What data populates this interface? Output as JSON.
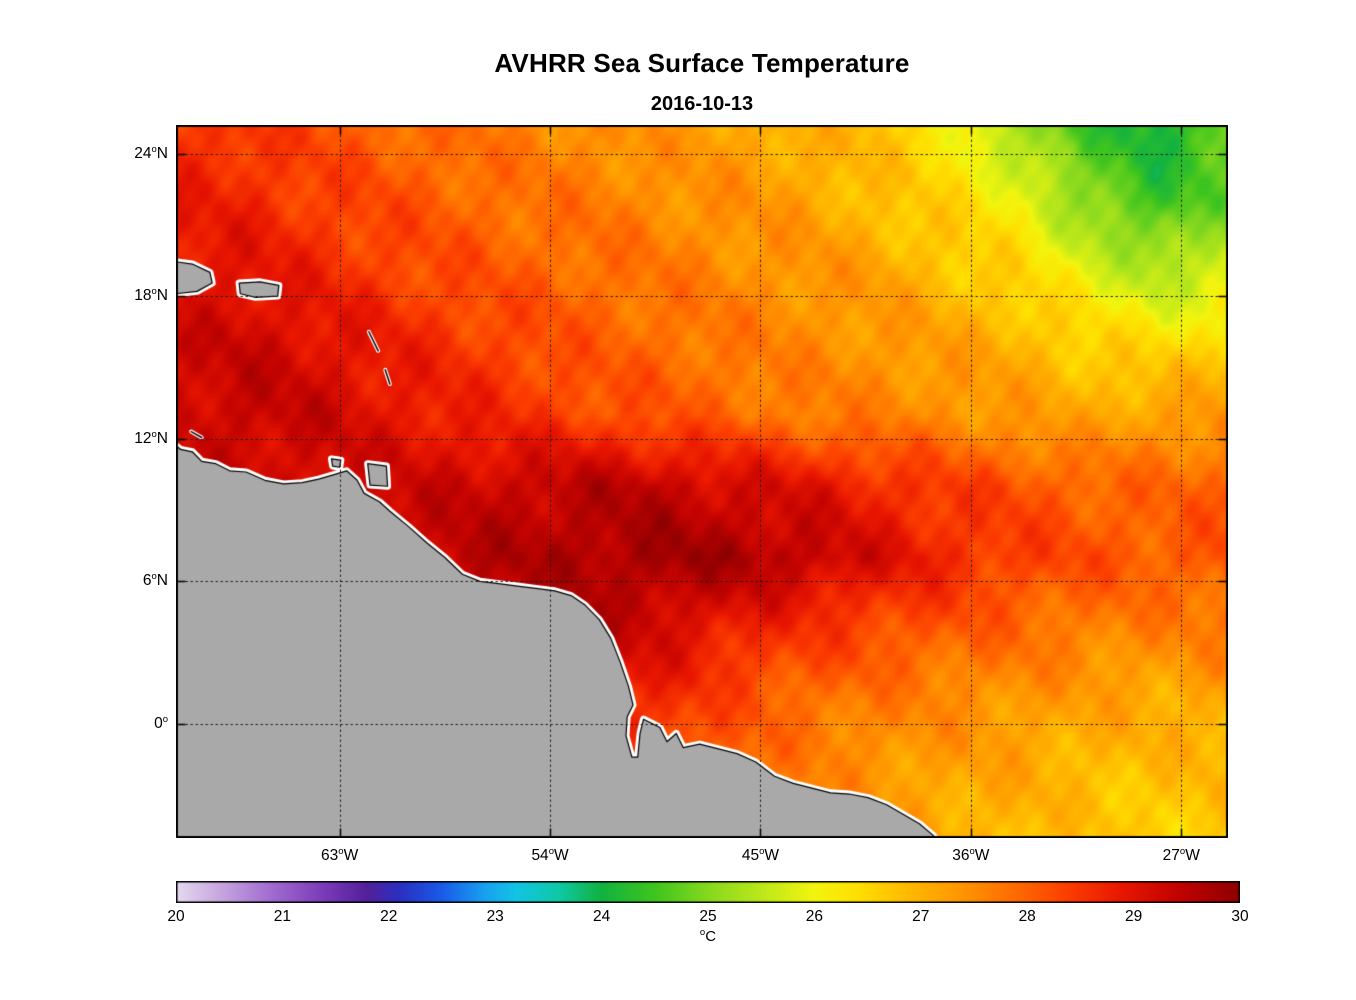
{
  "chart_data": {
    "type": "heatmap",
    "title": "AVHRR Sea Surface Temperature",
    "subtitle": "2016-10-13",
    "xlabel": "",
    "ylabel": "",
    "grid": "dotted",
    "legend_position": "colorbar-bottom",
    "x_axis": {
      "range": [
        -70,
        -25
      ],
      "ticks": [
        {
          "value": -63,
          "num": "63",
          "deg": "o",
          "dir": "W"
        },
        {
          "value": -54,
          "num": "54",
          "deg": "o",
          "dir": "W"
        },
        {
          "value": -45,
          "num": "45",
          "deg": "o",
          "dir": "W"
        },
        {
          "value": -36,
          "num": "36",
          "deg": "o",
          "dir": "W"
        },
        {
          "value": -27,
          "num": "27",
          "deg": "o",
          "dir": "W"
        }
      ]
    },
    "y_axis": {
      "range": [
        -4.8,
        25.2
      ],
      "ticks": [
        {
          "value": 24,
          "num": "24",
          "deg": "o",
          "dir": "N"
        },
        {
          "value": 18,
          "num": "18",
          "deg": "o",
          "dir": "N"
        },
        {
          "value": 12,
          "num": "12",
          "deg": "o",
          "dir": "N"
        },
        {
          "value": 6,
          "num": "6",
          "deg": "o",
          "dir": "N"
        },
        {
          "value": 0,
          "num": "0",
          "deg": "o",
          "dir": ""
        }
      ]
    },
    "field": {
      "units": "degC",
      "lons": [
        -70,
        -67,
        -64,
        -61,
        -58,
        -55,
        -52,
        -49,
        -46,
        -43,
        -40,
        -37,
        -34,
        -31,
        -28,
        -25
      ],
      "lats": [
        -5,
        -2,
        1,
        4,
        7,
        10,
        13,
        16,
        19,
        22,
        25
      ],
      "sst_c": [
        [
          28.4,
          28.5,
          28.5,
          28.5,
          28.5,
          28.5,
          28.4,
          28.1,
          27.7,
          27.4,
          27.2,
          27.0,
          26.9,
          26.7,
          26.6,
          26.7
        ],
        [
          28.5,
          28.6,
          28.6,
          28.7,
          28.7,
          28.7,
          28.6,
          28.3,
          27.9,
          27.6,
          27.4,
          27.2,
          27.1,
          26.9,
          26.8,
          26.9
        ],
        [
          28.6,
          28.7,
          28.8,
          28.9,
          29.0,
          29.0,
          28.9,
          28.6,
          28.2,
          27.9,
          27.7,
          27.5,
          27.4,
          27.2,
          27.1,
          27.2
        ],
        [
          28.8,
          28.9,
          29.0,
          29.1,
          29.2,
          29.3,
          29.4,
          29.2,
          28.8,
          28.5,
          28.3,
          28.1,
          27.9,
          27.7,
          27.6,
          27.7
        ],
        [
          29.0,
          29.1,
          29.2,
          29.3,
          29.5,
          29.6,
          29.7,
          29.8,
          29.7,
          29.5,
          29.1,
          28.7,
          28.4,
          28.2,
          28.1,
          28.2
        ],
        [
          29.1,
          29.2,
          29.2,
          29.2,
          29.3,
          29.4,
          29.5,
          29.4,
          29.2,
          29.0,
          28.7,
          28.4,
          28.2,
          28.0,
          27.9,
          28.0
        ],
        [
          29.3,
          29.4,
          29.3,
          29.0,
          28.8,
          28.5,
          28.3,
          28.1,
          27.9,
          27.7,
          27.6,
          27.5,
          27.3,
          27.1,
          27.3,
          27.4
        ],
        [
          29.2,
          29.3,
          29.1,
          28.8,
          28.5,
          28.3,
          28.0,
          27.9,
          27.7,
          27.5,
          27.4,
          27.2,
          27.0,
          26.6,
          26.4,
          26.5
        ],
        [
          29.0,
          29.0,
          28.7,
          28.4,
          28.2,
          28.0,
          27.9,
          27.7,
          27.5,
          27.4,
          27.2,
          26.8,
          26.5,
          25.9,
          25.4,
          25.7
        ],
        [
          28.8,
          28.7,
          28.4,
          28.2,
          28.0,
          27.8,
          27.7,
          27.5,
          27.4,
          27.2,
          26.8,
          26.5,
          26.1,
          25.0,
          24.4,
          24.9
        ],
        [
          28.6,
          28.5,
          28.2,
          28.0,
          27.8,
          27.6,
          27.5,
          27.3,
          27.2,
          27.0,
          26.8,
          26.3,
          25.2,
          24.5,
          24.1,
          24.6
        ]
      ]
    },
    "colorbar": {
      "min": 20,
      "max": 30,
      "tick_labels": [
        "20",
        "21",
        "22",
        "23",
        "24",
        "25",
        "26",
        "27",
        "28",
        "29",
        "30"
      ],
      "unit_deg": "o",
      "unit_text": "C",
      "stops": [
        [
          20.0,
          "#E4DAF0"
        ],
        [
          20.4,
          "#C9A8E0"
        ],
        [
          20.9,
          "#A06CD0"
        ],
        [
          21.4,
          "#7A3AB8"
        ],
        [
          21.8,
          "#52209A"
        ],
        [
          22.1,
          "#2B2FC0"
        ],
        [
          22.5,
          "#1A5BE8"
        ],
        [
          22.9,
          "#19A0F0"
        ],
        [
          23.2,
          "#13C4E4"
        ],
        [
          23.6,
          "#0FC9A5"
        ],
        [
          24.0,
          "#12B240"
        ],
        [
          24.5,
          "#3FC51E"
        ],
        [
          25.0,
          "#86D81E"
        ],
        [
          25.5,
          "#BCE81A"
        ],
        [
          26.0,
          "#F2F50E"
        ],
        [
          26.4,
          "#FFE000"
        ],
        [
          26.9,
          "#FFB800"
        ],
        [
          27.4,
          "#FF9400"
        ],
        [
          27.9,
          "#FF6A00"
        ],
        [
          28.4,
          "#FB3C00"
        ],
        [
          28.9,
          "#E81600"
        ],
        [
          29.4,
          "#C30300"
        ],
        [
          30.0,
          "#8E0000"
        ]
      ]
    }
  },
  "map": {
    "land_color": "#A9A9A9",
    "coast_halo": "#FFFFFF",
    "coast_line": "#000000",
    "grid_color": "#1A1A1A",
    "frame_color": "#000000"
  },
  "geometry": {
    "mainland": [
      [
        -70.3,
        -5.3
      ],
      [
        -70.3,
        11.7
      ],
      [
        -70.05,
        11.75
      ],
      [
        -69.8,
        11.55
      ],
      [
        -69.3,
        11.45
      ],
      [
        -68.9,
        11.05
      ],
      [
        -68.3,
        10.95
      ],
      [
        -67.7,
        10.65
      ],
      [
        -67.0,
        10.6
      ],
      [
        -66.2,
        10.25
      ],
      [
        -65.4,
        10.1
      ],
      [
        -64.6,
        10.15
      ],
      [
        -63.9,
        10.3
      ],
      [
        -63.2,
        10.5
      ],
      [
        -62.7,
        10.65
      ],
      [
        -62.25,
        10.25
      ],
      [
        -61.95,
        9.7
      ],
      [
        -61.3,
        9.35
      ],
      [
        -60.85,
        8.95
      ],
      [
        -60.05,
        8.3
      ],
      [
        -59.25,
        7.6
      ],
      [
        -58.5,
        7.0
      ],
      [
        -57.75,
        6.3
      ],
      [
        -57.0,
        6.0
      ],
      [
        -56.2,
        5.9
      ],
      [
        -55.4,
        5.8
      ],
      [
        -54.6,
        5.7
      ],
      [
        -53.8,
        5.6
      ],
      [
        -53.1,
        5.4
      ],
      [
        -52.5,
        5.0
      ],
      [
        -51.9,
        4.4
      ],
      [
        -51.4,
        3.6
      ],
      [
        -51.0,
        2.6
      ],
      [
        -50.65,
        1.6
      ],
      [
        -50.45,
        0.8
      ],
      [
        -50.7,
        0.3
      ],
      [
        -50.75,
        -0.5
      ],
      [
        -50.5,
        -1.4
      ],
      [
        -50.25,
        -1.4
      ],
      [
        -50.15,
        -0.4
      ],
      [
        -50.0,
        0.2
      ],
      [
        -49.7,
        0.05
      ],
      [
        -49.3,
        -0.15
      ],
      [
        -49.0,
        -0.75
      ],
      [
        -48.6,
        -0.4
      ],
      [
        -48.3,
        -1.0
      ],
      [
        -47.6,
        -0.85
      ],
      [
        -46.8,
        -1.05
      ],
      [
        -46.0,
        -1.25
      ],
      [
        -45.2,
        -1.6
      ],
      [
        -44.4,
        -2.2
      ],
      [
        -43.6,
        -2.5
      ],
      [
        -42.8,
        -2.7
      ],
      [
        -42.0,
        -2.9
      ],
      [
        -41.2,
        -2.95
      ],
      [
        -40.4,
        -3.1
      ],
      [
        -39.6,
        -3.4
      ],
      [
        -38.9,
        -3.8
      ],
      [
        -38.2,
        -4.2
      ],
      [
        -37.6,
        -4.7
      ],
      [
        -37.2,
        -5.4
      ]
    ],
    "islands": [
      [
        [
          -70.4,
          19.5
        ],
        [
          -69.3,
          19.35
        ],
        [
          -68.55,
          19.0
        ],
        [
          -68.45,
          18.55
        ],
        [
          -69.1,
          18.2
        ],
        [
          -70.0,
          18.1
        ],
        [
          -70.4,
          18.25
        ]
      ],
      [
        [
          -67.3,
          18.55
        ],
        [
          -66.4,
          18.6
        ],
        [
          -65.6,
          18.45
        ],
        [
          -65.65,
          18.0
        ],
        [
          -66.6,
          17.95
        ],
        [
          -67.25,
          18.1
        ]
      ],
      [
        [
          -61.8,
          10.95
        ],
        [
          -61.0,
          10.85
        ],
        [
          -60.95,
          10.0
        ],
        [
          -61.7,
          10.05
        ]
      ],
      [
        [
          -63.35,
          11.15
        ],
        [
          -62.95,
          11.1
        ],
        [
          -63.0,
          10.8
        ],
        [
          -63.3,
          10.85
        ]
      ]
    ],
    "island_marks": [
      [
        [
          -61.75,
          16.5
        ],
        [
          -61.35,
          15.7
        ]
      ],
      [
        [
          -61.05,
          14.9
        ],
        [
          -60.85,
          14.3
        ]
      ],
      [
        [
          -69.35,
          12.3
        ],
        [
          -68.9,
          12.05
        ]
      ]
    ]
  }
}
